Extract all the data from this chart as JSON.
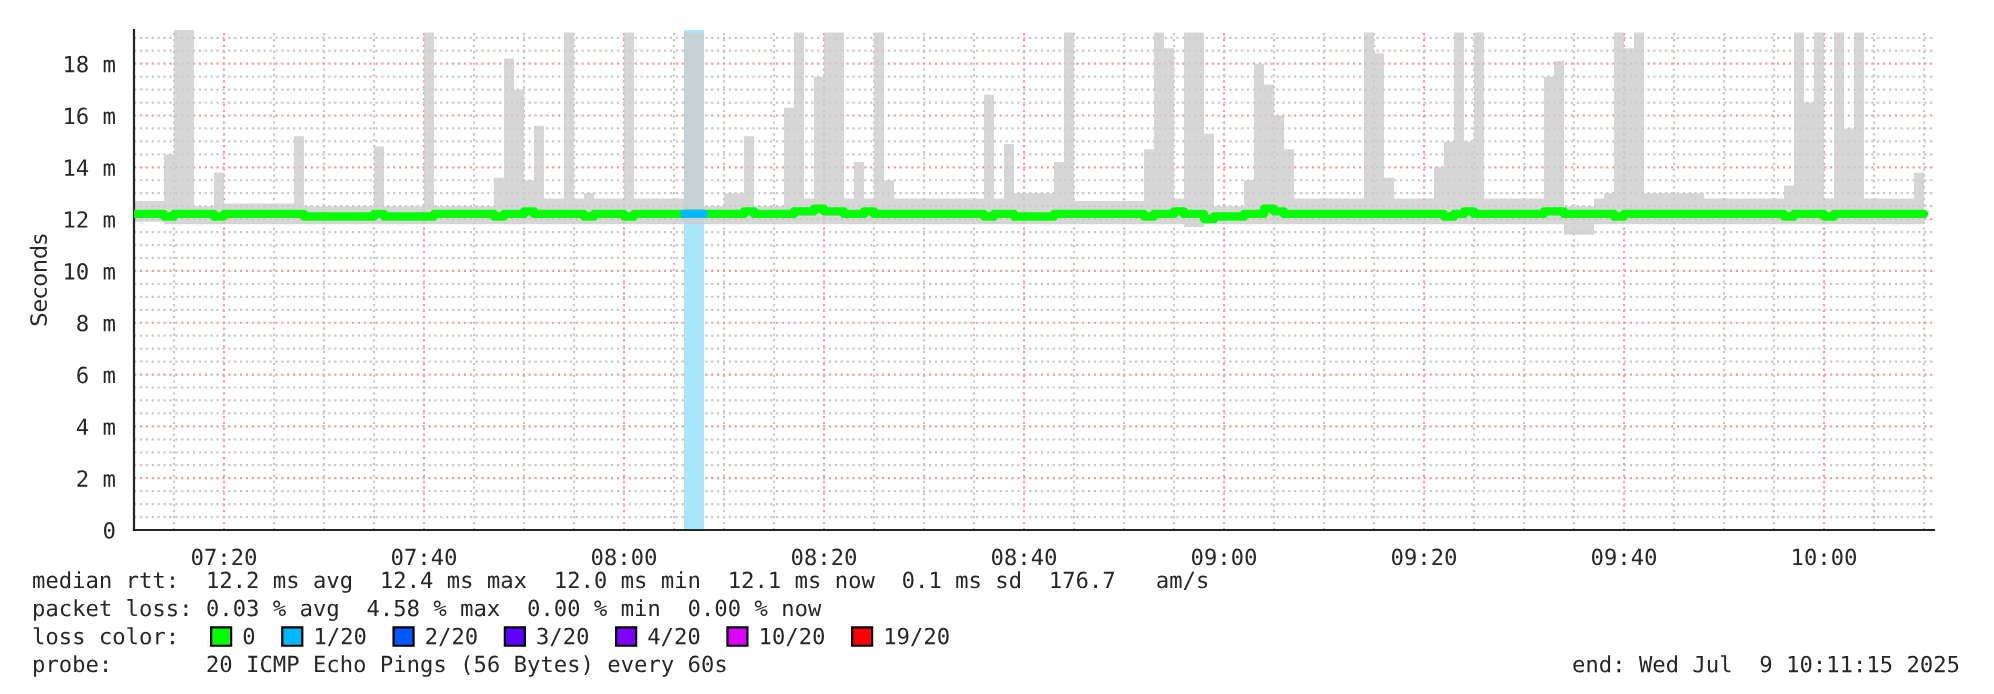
{
  "chart_data": {
    "type": "line",
    "ylabel": "Seconds",
    "series": [
      {
        "x": [
          "2025-07-09T07:11",
          "2025-07-09T07:14",
          "2025-07-09T07:15",
          "2025-07-09T07:17",
          "2025-07-09T07:19",
          "2025-07-09T07:20",
          "2025-07-09T07:27",
          "2025-07-09T07:28",
          "2025-07-09T07:35",
          "2025-07-09T07:36",
          "2025-07-09T07:40",
          "2025-07-09T07:41",
          "2025-07-09T07:47",
          "2025-07-09T07:48",
          "2025-07-09T07:49",
          "2025-07-09T07:50",
          "2025-07-09T07:51",
          "2025-07-09T07:52",
          "2025-07-09T07:54",
          "2025-07-09T07:55",
          "2025-07-09T07:56",
          "2025-07-09T07:57",
          "2025-07-09T08:00",
          "2025-07-09T08:01",
          "2025-07-09T08:06",
          "2025-07-09T08:08",
          "2025-07-09T08:10",
          "2025-07-09T08:12",
          "2025-07-09T08:13",
          "2025-07-09T08:16",
          "2025-07-09T08:17",
          "2025-07-09T08:18",
          "2025-07-09T08:19",
          "2025-07-09T08:20",
          "2025-07-09T08:22",
          "2025-07-09T08:23",
          "2025-07-09T08:24",
          "2025-07-09T08:25",
          "2025-07-09T08:26",
          "2025-07-09T08:27",
          "2025-07-09T08:36",
          "2025-07-09T08:37",
          "2025-07-09T08:38",
          "2025-07-09T08:39",
          "2025-07-09T08:43",
          "2025-07-09T08:44",
          "2025-07-09T08:45",
          "2025-07-09T08:52",
          "2025-07-09T08:53",
          "2025-07-09T08:54",
          "2025-07-09T08:55",
          "2025-07-09T08:56",
          "2025-07-09T08:58",
          "2025-07-09T08:59",
          "2025-07-09T09:02",
          "2025-07-09T09:03",
          "2025-07-09T09:04",
          "2025-07-09T09:05",
          "2025-07-09T09:06",
          "2025-07-09T09:07",
          "2025-07-09T09:14",
          "2025-07-09T09:15",
          "2025-07-09T09:16",
          "2025-07-09T09:17",
          "2025-07-09T09:21",
          "2025-07-09T09:22",
          "2025-07-09T09:23",
          "2025-07-09T09:24",
          "2025-07-09T09:25",
          "2025-07-09T09:26",
          "2025-07-09T09:32",
          "2025-07-09T09:33",
          "2025-07-09T09:34",
          "2025-07-09T09:37",
          "2025-07-09T09:38",
          "2025-07-09T09:39",
          "2025-07-09T09:40",
          "2025-07-09T09:41",
          "2025-07-09T09:42",
          "2025-07-09T09:48",
          "2025-07-09T09:56",
          "2025-07-09T09:57",
          "2025-07-09T09:58",
          "2025-07-09T09:59",
          "2025-07-09T10:00",
          "2025-07-09T10:01",
          "2025-07-09T10:02",
          "2025-07-09T10:03",
          "2025-07-09T10:04",
          "2025-07-09T10:09",
          "2025-07-09T10:10"
        ],
        "name": "0",
        "color": "#00ff00",
        "values": [
          12.2,
          12.1,
          12.2,
          12.2,
          12.1,
          12.2,
          12.2,
          12.1,
          12.2,
          12.1,
          12.1,
          12.2,
          12.1,
          12.2,
          12.2,
          12.3,
          12.2,
          12.2,
          12.2,
          12.2,
          12.1,
          12.2,
          12.1,
          12.2,
          null,
          12.2,
          12.2,
          12.3,
          12.2,
          12.2,
          12.3,
          12.3,
          12.4,
          12.3,
          12.2,
          12.2,
          12.3,
          12.2,
          12.2,
          12.2,
          12.1,
          12.2,
          12.2,
          12.1,
          12.2,
          12.2,
          12.2,
          12.1,
          12.2,
          12.2,
          12.3,
          12.2,
          12.0,
          12.1,
          12.2,
          12.2,
          12.4,
          12.3,
          12.2,
          12.2,
          12.2,
          12.2,
          12.2,
          12.2,
          12.2,
          12.1,
          12.2,
          12.3,
          12.2,
          12.2,
          12.3,
          12.3,
          12.2,
          12.2,
          12.2,
          12.1,
          12.2,
          12.2,
          12.2,
          12.2,
          12.1,
          12.2,
          12.2,
          12.2,
          12.1,
          12.2,
          12.2,
          12.2,
          12.2,
          12.2,
          12.2
        ],
        "lower": [
          11.9,
          11.8,
          11.8,
          11.8,
          11.8,
          11.8,
          11.8,
          11.8,
          11.8,
          11.8,
          11.8,
          11.8,
          11.8,
          11.8,
          11.8,
          11.8,
          11.8,
          11.8,
          11.8,
          11.8,
          11.8,
          11.8,
          11.8,
          11.8,
          11.8,
          11.8,
          11.8,
          11.8,
          11.8,
          11.8,
          11.8,
          11.8,
          11.8,
          11.8,
          11.8,
          11.8,
          11.8,
          11.8,
          11.8,
          11.8,
          11.8,
          11.8,
          11.8,
          11.8,
          11.8,
          11.8,
          11.8,
          11.8,
          11.8,
          11.8,
          11.8,
          11.7,
          11.8,
          11.8,
          11.8,
          11.8,
          11.8,
          11.8,
          11.8,
          11.8,
          11.8,
          11.8,
          11.8,
          11.8,
          11.8,
          11.8,
          11.8,
          11.8,
          11.8,
          11.8,
          11.8,
          11.8,
          11.4,
          11.8,
          11.8,
          11.8,
          11.8,
          11.8,
          11.8,
          11.8,
          11.8,
          11.8,
          11.8,
          11.8,
          11.8,
          11.8,
          11.8,
          11.8,
          11.8,
          11.8,
          11.8
        ],
        "upper": [
          12.7,
          14.5,
          19.3,
          12.5,
          13.8,
          12.6,
          15.2,
          12.5,
          14.8,
          12.5,
          19.2,
          12.5,
          13.6,
          18.2,
          17,
          13.5,
          15.6,
          12.8,
          19.2,
          12.8,
          13,
          12.8,
          19.2,
          12.8,
          19.2,
          12.5,
          13,
          15.2,
          12.5,
          16.3,
          19.2,
          12.8,
          17.5,
          19.2,
          12.8,
          14.2,
          12.8,
          19.2,
          13.5,
          12.8,
          16.8,
          12.8,
          14.9,
          13,
          14.2,
          19.2,
          12.7,
          14.7,
          19.2,
          18.6,
          12.8,
          19.2,
          15.3,
          12.5,
          13.5,
          18,
          17.2,
          16,
          14.7,
          12.8,
          19.2,
          18.4,
          13.6,
          12.8,
          14,
          15,
          19.2,
          15,
          19.2,
          12.8,
          17.5,
          18.1,
          12.5,
          12.8,
          13,
          19.2,
          18.6,
          19.2,
          13,
          12.8,
          13.3,
          19.2,
          16.5,
          19.2,
          12.8,
          19.2,
          15.5,
          19.2,
          12.8,
          13.8,
          13.8
        ]
      },
      {
        "name": "1/20",
        "color": "#00b8ff",
        "x": [
          "2025-07-09T08:06",
          "2025-07-09T08:08"
        ],
        "values": [
          12.2,
          12.2
        ]
      },
      {
        "name": "2/20",
        "color": "#0059ff"
      },
      {
        "name": "3/20",
        "color": "#5e00ff"
      },
      {
        "name": "4/20",
        "color": "#7e00ff"
      },
      {
        "name": "10/20",
        "color": "#dd00ff"
      },
      {
        "name": "19/20",
        "color": "#ff0000"
      }
    ],
    "bands": [
      {
        "axis": "x",
        "from": "2025-07-09T08:06",
        "to": "2025-07-09T08:08",
        "color": "#aae6fa"
      }
    ],
    "xlim": [
      "2025-07-09T07:11",
      "2025-07-09T10:11"
    ],
    "xticks": [
      {
        "value": "2025-07-09T07:20",
        "label": "07:20"
      },
      {
        "value": "2025-07-09T07:40",
        "label": "07:40"
      },
      {
        "value": "2025-07-09T08:00",
        "label": "08:00"
      },
      {
        "value": "2025-07-09T08:20",
        "label": "08:20"
      },
      {
        "value": "2025-07-09T08:40",
        "label": "08:40"
      },
      {
        "value": "2025-07-09T09:00",
        "label": "09:00"
      },
      {
        "value": "2025-07-09T09:20",
        "label": "09:20"
      },
      {
        "value": "2025-07-09T09:40",
        "label": "09:40"
      },
      {
        "value": "2025-07-09T10:00",
        "label": "10:00"
      }
    ],
    "ylim": [
      0,
      19.3
    ],
    "yticks": [
      0,
      {
        "value": 2,
        "label": "2 m"
      },
      {
        "value": 4,
        "label": "4 m"
      },
      {
        "value": 6,
        "label": "6 m"
      },
      {
        "value": 8,
        "label": "8 m"
      },
      {
        "value": 10,
        "label": "10 m"
      },
      {
        "value": 12,
        "label": "12 m"
      },
      {
        "value": 14,
        "label": "14 m"
      },
      {
        "value": 16,
        "label": "16 m"
      },
      {
        "value": 18,
        "label": "18 m"
      }
    ],
    "grid": true,
    "legend": "bottom",
    "legend_title": "loss color:",
    "line_style": "solid",
    "marker": "none",
    "annotations": [
      "median rtt:  12.2 ms avg  12.4 ms max  12.0 ms min  12.1 ms now  0.1 ms sd  176.7   am/s",
      "packet loss: 0.03 % avg  4.58 % max  0.00 % min  0.00 % now",
      "probe:       20 ICMP Echo Pings (56 Bytes) every 60s",
      "end: Wed Jul  9 10:11:15 2025"
    ]
  }
}
